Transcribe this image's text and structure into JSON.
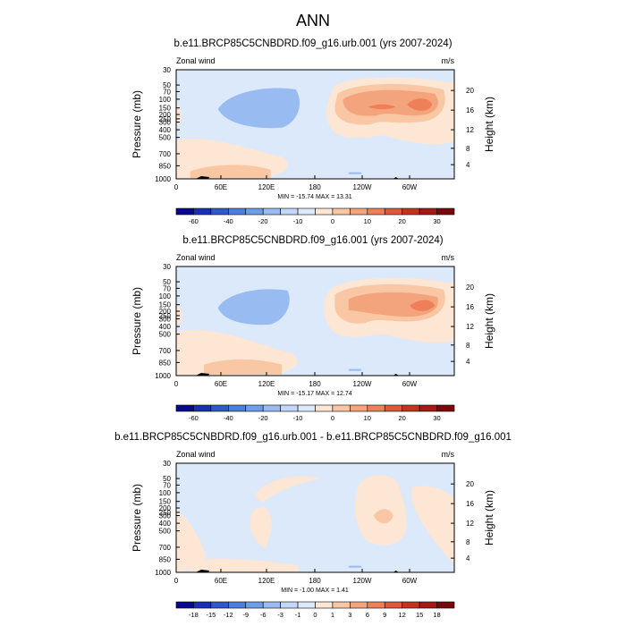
{
  "figure_title": "ANN",
  "chart_data": [
    {
      "type": "heatmap",
      "title": "b.e11.BRCP85C5CNBDRD.f09_g16.urb.001 (yrs 2007-2024)",
      "left_label": "Zonal wind",
      "right_label": "m/s",
      "ylabel": "Pressure (mb)",
      "ylabel_right": "Height (km)",
      "xticks": [
        "0",
        "60E",
        "120E",
        "180",
        "120W",
        "60W"
      ],
      "yticks": [
        "30",
        "50",
        "70",
        "100",
        "150",
        "200",
        "250",
        "300",
        "400",
        "500",
        "700",
        "850",
        "1000"
      ],
      "height_ticks": [
        "20",
        "16",
        "12",
        "8",
        "4"
      ],
      "stats": "MIN = -15.74  MAX =  13.31",
      "colorbar_ticks": [
        "-60",
        "-40",
        "-20",
        "-10",
        "0",
        "10",
        "20",
        "30"
      ],
      "colorbar_colors": [
        "#08088f",
        "#1830b4",
        "#2e58cc",
        "#4a7ee0",
        "#6e9ee8",
        "#98bcf2",
        "#c2d8fa",
        "#dce9fb",
        "#fde6d4",
        "#f9c7a4",
        "#f4a47c",
        "#ee7f58",
        "#e0573a",
        "#c7321f",
        "#a81812",
        "#7a0808"
      ]
    },
    {
      "type": "heatmap",
      "title": "b.e11.BRCP85C5CNBDRD.f09_g16.001 (yrs 2007-2024)",
      "left_label": "Zonal wind",
      "right_label": "m/s",
      "ylabel": "Pressure (mb)",
      "ylabel_right": "Height (km)",
      "xticks": [
        "0",
        "60E",
        "120E",
        "180",
        "120W",
        "60W"
      ],
      "yticks": [
        "30",
        "50",
        "70",
        "100",
        "150",
        "200",
        "250",
        "300",
        "400",
        "500",
        "700",
        "850",
        "1000"
      ],
      "height_ticks": [
        "20",
        "16",
        "12",
        "8",
        "4"
      ],
      "stats": "MIN = -15.17  MAX =  12.74",
      "colorbar_ticks": [
        "-60",
        "-40",
        "-20",
        "-10",
        "0",
        "10",
        "20",
        "30"
      ],
      "colorbar_colors": [
        "#08088f",
        "#1830b4",
        "#2e58cc",
        "#4a7ee0",
        "#6e9ee8",
        "#98bcf2",
        "#c2d8fa",
        "#dce9fb",
        "#fde6d4",
        "#f9c7a4",
        "#f4a47c",
        "#ee7f58",
        "#e0573a",
        "#c7321f",
        "#a81812",
        "#7a0808"
      ]
    },
    {
      "type": "heatmap",
      "title": "b.e11.BRCP85C5CNBDRD.f09_g16.urb.001 - b.e11.BRCP85C5CNBDRD.f09_g16.001",
      "left_label": "Zonal wind",
      "right_label": "m/s",
      "ylabel": "Pressure (mb)",
      "ylabel_right": "Height (km)",
      "xticks": [
        "0",
        "60E",
        "120E",
        "180",
        "120W",
        "60W"
      ],
      "yticks": [
        "30",
        "50",
        "70",
        "100",
        "150",
        "200",
        "250",
        "300",
        "400",
        "500",
        "700",
        "850",
        "1000"
      ],
      "height_ticks": [
        "20",
        "16",
        "12",
        "8",
        "4"
      ],
      "stats": "MIN = -1.00  MAX =  1.41",
      "colorbar_ticks": [
        "-18",
        "-15",
        "-12",
        "-9",
        "-6",
        "-3",
        "-1",
        "0",
        "1",
        "3",
        "6",
        "9",
        "12",
        "15",
        "18"
      ],
      "colorbar_colors": [
        "#08088f",
        "#1830b4",
        "#2e58cc",
        "#4a7ee0",
        "#6e9ee8",
        "#98bcf2",
        "#c2d8fa",
        "#dce9fb",
        "#fde6d4",
        "#f9c7a4",
        "#f4a47c",
        "#ee7f58",
        "#e0573a",
        "#c7321f",
        "#a81812",
        "#7a0808"
      ]
    }
  ],
  "colors": {
    "neg_light": "#dce9fb",
    "neg_mid": "#c2d8fa",
    "neg_strong": "#98bcf2",
    "pos_light": "#fde6d4",
    "pos_mid": "#f9c7a4",
    "pos_strong": "#f4a47c",
    "pos_max": "#ee7f58",
    "terrain": "#000000"
  }
}
